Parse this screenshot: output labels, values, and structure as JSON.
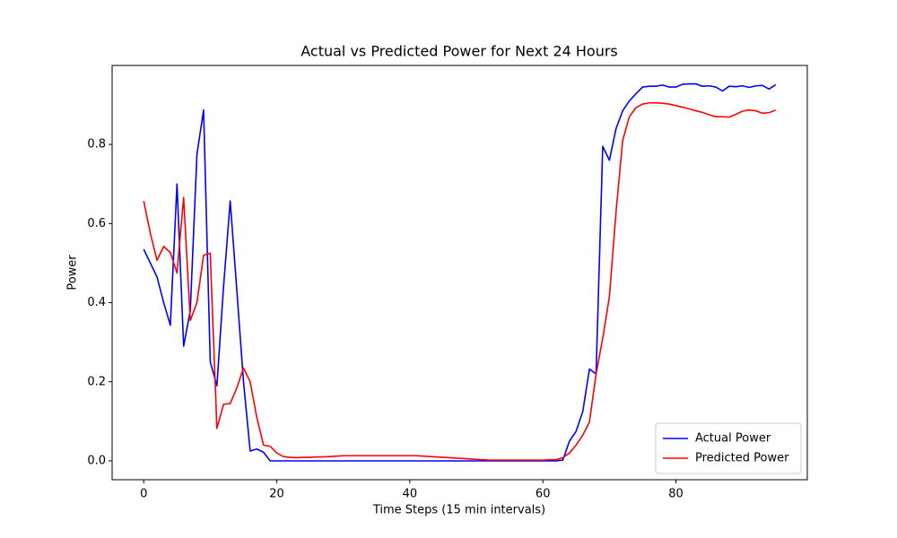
{
  "chart_data": {
    "type": "line",
    "title": "Actual vs Predicted Power for Next 24 Hours",
    "xlabel": "Time Steps (15 min intervals)",
    "ylabel": "Power",
    "x": [
      0,
      1,
      2,
      3,
      4,
      5,
      6,
      7,
      8,
      9,
      10,
      11,
      12,
      13,
      14,
      15,
      16,
      17,
      18,
      19,
      20,
      21,
      22,
      23,
      24,
      25,
      26,
      27,
      28,
      29,
      30,
      31,
      32,
      33,
      34,
      35,
      36,
      37,
      38,
      39,
      40,
      41,
      42,
      43,
      44,
      45,
      46,
      47,
      48,
      49,
      50,
      51,
      52,
      53,
      54,
      55,
      56,
      57,
      58,
      59,
      60,
      61,
      62,
      63,
      64,
      65,
      66,
      67,
      68,
      69,
      70,
      71,
      72,
      73,
      74,
      75,
      76,
      77,
      78,
      79,
      80,
      81,
      82,
      83,
      84,
      85,
      86,
      87,
      88,
      89,
      90,
      91,
      92,
      93,
      94,
      95
    ],
    "series": [
      {
        "name": "Actual Power",
        "color": "#0000ff",
        "values": [
          0.535,
          0.5,
          0.465,
          0.4,
          0.343,
          0.7,
          0.29,
          0.38,
          0.775,
          0.887,
          0.25,
          0.19,
          0.44,
          0.657,
          0.43,
          0.2,
          0.025,
          0.03,
          0.022,
          0.0,
          0.0,
          0.0,
          0.0,
          0.0,
          0.0,
          0.0,
          0.0,
          0.0,
          0.0,
          0.0,
          0.0,
          0.0,
          0.0,
          0.0,
          0.0,
          0.0,
          0.0,
          0.0,
          0.0,
          0.0,
          0.0,
          0.0,
          0.0,
          0.0,
          0.0,
          0.0,
          0.0,
          0.0,
          0.0,
          0.0,
          0.0,
          0.0,
          0.0,
          0.0,
          0.0,
          0.0,
          0.0,
          0.0,
          0.0,
          0.0,
          0.0,
          0.0,
          0.0,
          0.002,
          0.05,
          0.075,
          0.125,
          0.232,
          0.22,
          0.795,
          0.76,
          0.84,
          0.885,
          0.91,
          0.928,
          0.945,
          0.947,
          0.947,
          0.95,
          0.945,
          0.945,
          0.952,
          0.953,
          0.953,
          0.947,
          0.948,
          0.945,
          0.935,
          0.947,
          0.946,
          0.948,
          0.944,
          0.948,
          0.949,
          0.94,
          0.951
        ]
      },
      {
        "name": "Predicted Power",
        "color": "#ff0000",
        "values": [
          0.657,
          0.575,
          0.507,
          0.542,
          0.527,
          0.475,
          0.666,
          0.355,
          0.4,
          0.52,
          0.525,
          0.082,
          0.143,
          0.145,
          0.185,
          0.235,
          0.2,
          0.11,
          0.04,
          0.037,
          0.02,
          0.011,
          0.009,
          0.008,
          0.009,
          0.009,
          0.01,
          0.01,
          0.011,
          0.012,
          0.013,
          0.013,
          0.013,
          0.013,
          0.013,
          0.013,
          0.013,
          0.013,
          0.013,
          0.013,
          0.013,
          0.013,
          0.012,
          0.011,
          0.01,
          0.009,
          0.008,
          0.007,
          0.006,
          0.005,
          0.004,
          0.003,
          0.002,
          0.002,
          0.002,
          0.002,
          0.002,
          0.002,
          0.002,
          0.002,
          0.002,
          0.003,
          0.003,
          0.008,
          0.02,
          0.04,
          0.065,
          0.098,
          0.22,
          0.31,
          0.415,
          0.63,
          0.81,
          0.87,
          0.893,
          0.902,
          0.905,
          0.905,
          0.904,
          0.902,
          0.898,
          0.894,
          0.89,
          0.885,
          0.881,
          0.875,
          0.87,
          0.87,
          0.869,
          0.876,
          0.884,
          0.887,
          0.885,
          0.879,
          0.88,
          0.887
        ]
      }
    ],
    "xlim": [
      -4.75,
      99.75
    ],
    "ylim": [
      -0.0476,
      0.9996
    ],
    "xticks": [
      0,
      20,
      40,
      60,
      80
    ],
    "yticks": [
      {
        "value": 0,
        "label": "0.0"
      },
      0.2,
      0.4,
      0.6,
      0.8
    ],
    "legend": "lower right"
  }
}
